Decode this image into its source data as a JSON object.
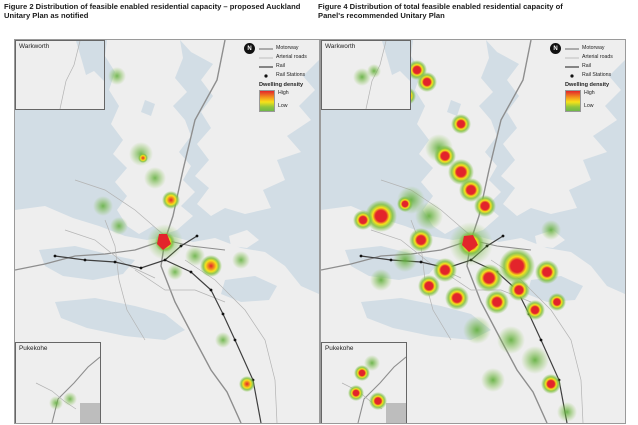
{
  "left": {
    "title_line1": "Figure 2 Distribution of feasible enabled residential capacity – proposed Auckland",
    "title_line2": "Unitary Plan as notified",
    "inset_north_label": "Warkworth",
    "inset_south_label": "Pukekohe"
  },
  "right": {
    "title_line1": "Figure 4 Distribution of total feasible enabled residential capacity of",
    "title_line2": "Panel's recommended Unitary Plan",
    "inset_north_label": "Warkworth",
    "inset_south_label": "Pukekohe"
  },
  "north_arrow_label": "N",
  "legend": {
    "items": [
      "Motorway",
      "Arterial roads",
      "Rail",
      "Rail Stations"
    ],
    "density_title": "Dwelling density",
    "high_label": "High",
    "low_label": "Low"
  },
  "colors": {
    "water": "#d2dde5",
    "land": "#eeeeee",
    "motorway": "#8e8e8e",
    "rail": "#3e3e3e",
    "density_high": "#e3242b",
    "density_mid": "#f7e21a",
    "density_low": "#6fb74a"
  }
}
